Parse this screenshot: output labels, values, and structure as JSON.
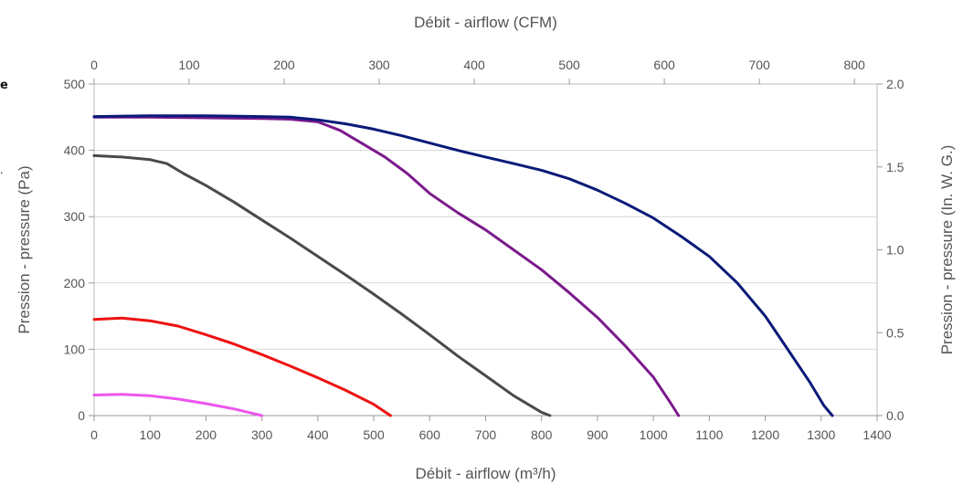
{
  "chart_data": {
    "type": "line",
    "title": "",
    "xlabel": "Débit - airflow (m³/h)",
    "x2label": "Débit - airflow (CFM)",
    "ylabel": "Pression - pressure (Pa)",
    "y2label": "Pression - pressure (In. W. G.)",
    "xlim": [
      0,
      1400
    ],
    "x2lim": [
      0,
      823.9
    ],
    "ylim": [
      0,
      500
    ],
    "y2lim": [
      0,
      2.0
    ],
    "x_ticks": [
      "0",
      "100",
      "200",
      "300",
      "400",
      "500",
      "600",
      "700",
      "800",
      "900",
      "1000",
      "1100",
      "1200",
      "1300",
      "1400"
    ],
    "x2_ticks": [
      "0",
      "100",
      "200",
      "300",
      "400",
      "500",
      "600",
      "700",
      "800"
    ],
    "y_ticks": [
      "0",
      "100",
      "200",
      "300",
      "400",
      "500"
    ],
    "y2_ticks": [
      "0.0",
      "0.5",
      "1.0",
      "1.5",
      "2.0"
    ],
    "grid": true,
    "legend": "none",
    "series": [
      {
        "color": "#ee55ee",
        "points": [
          [
            0,
            31
          ],
          [
            50,
            32
          ],
          [
            100,
            30
          ],
          [
            150,
            25
          ],
          [
            200,
            18
          ],
          [
            250,
            10
          ],
          [
            280,
            4
          ],
          [
            300,
            0
          ]
        ]
      },
      {
        "color": "#ee1111",
        "points": [
          [
            0,
            145
          ],
          [
            50,
            147
          ],
          [
            100,
            143
          ],
          [
            150,
            135
          ],
          [
            200,
            122
          ],
          [
            250,
            108
          ],
          [
            300,
            92
          ],
          [
            350,
            75
          ],
          [
            400,
            57
          ],
          [
            450,
            38
          ],
          [
            500,
            17
          ],
          [
            530,
            0
          ]
        ]
      },
      {
        "color": "#4a4a4a",
        "points": [
          [
            0,
            392
          ],
          [
            50,
            390
          ],
          [
            100,
            386
          ],
          [
            130,
            380
          ],
          [
            160,
            365
          ],
          [
            200,
            347
          ],
          [
            250,
            322
          ],
          [
            300,
            295
          ],
          [
            350,
            268
          ],
          [
            400,
            240
          ],
          [
            450,
            212
          ],
          [
            500,
            183
          ],
          [
            550,
            153
          ],
          [
            600,
            122
          ],
          [
            650,
            90
          ],
          [
            700,
            60
          ],
          [
            750,
            30
          ],
          [
            800,
            5
          ],
          [
            815,
            0
          ]
        ]
      },
      {
        "color": "#7b1a8c",
        "points": [
          [
            0,
            450
          ],
          [
            100,
            450
          ],
          [
            200,
            449
          ],
          [
            300,
            448
          ],
          [
            350,
            447
          ],
          [
            400,
            443
          ],
          [
            440,
            430
          ],
          [
            480,
            410
          ],
          [
            520,
            390
          ],
          [
            560,
            365
          ],
          [
            600,
            335
          ],
          [
            650,
            306
          ],
          [
            700,
            280
          ],
          [
            750,
            250
          ],
          [
            800,
            220
          ],
          [
            850,
            185
          ],
          [
            900,
            148
          ],
          [
            950,
            105
          ],
          [
            1000,
            58
          ],
          [
            1030,
            20
          ],
          [
            1045,
            0
          ]
        ]
      },
      {
        "color": "#0a1a78",
        "points": [
          [
            0,
            451
          ],
          [
            100,
            452
          ],
          [
            200,
            452
          ],
          [
            300,
            451
          ],
          [
            350,
            450
          ],
          [
            400,
            446
          ],
          [
            450,
            440
          ],
          [
            500,
            432
          ],
          [
            550,
            422
          ],
          [
            600,
            411
          ],
          [
            650,
            400
          ],
          [
            700,
            390
          ],
          [
            750,
            380
          ],
          [
            800,
            370
          ],
          [
            850,
            357
          ],
          [
            900,
            340
          ],
          [
            950,
            320
          ],
          [
            1000,
            298
          ],
          [
            1050,
            270
          ],
          [
            1100,
            240
          ],
          [
            1150,
            200
          ],
          [
            1200,
            150
          ],
          [
            1240,
            100
          ],
          [
            1280,
            50
          ],
          [
            1305,
            15
          ],
          [
            1320,
            0
          ]
        ]
      }
    ]
  },
  "left_fragment_1": "e",
  "left_fragment_2": "."
}
